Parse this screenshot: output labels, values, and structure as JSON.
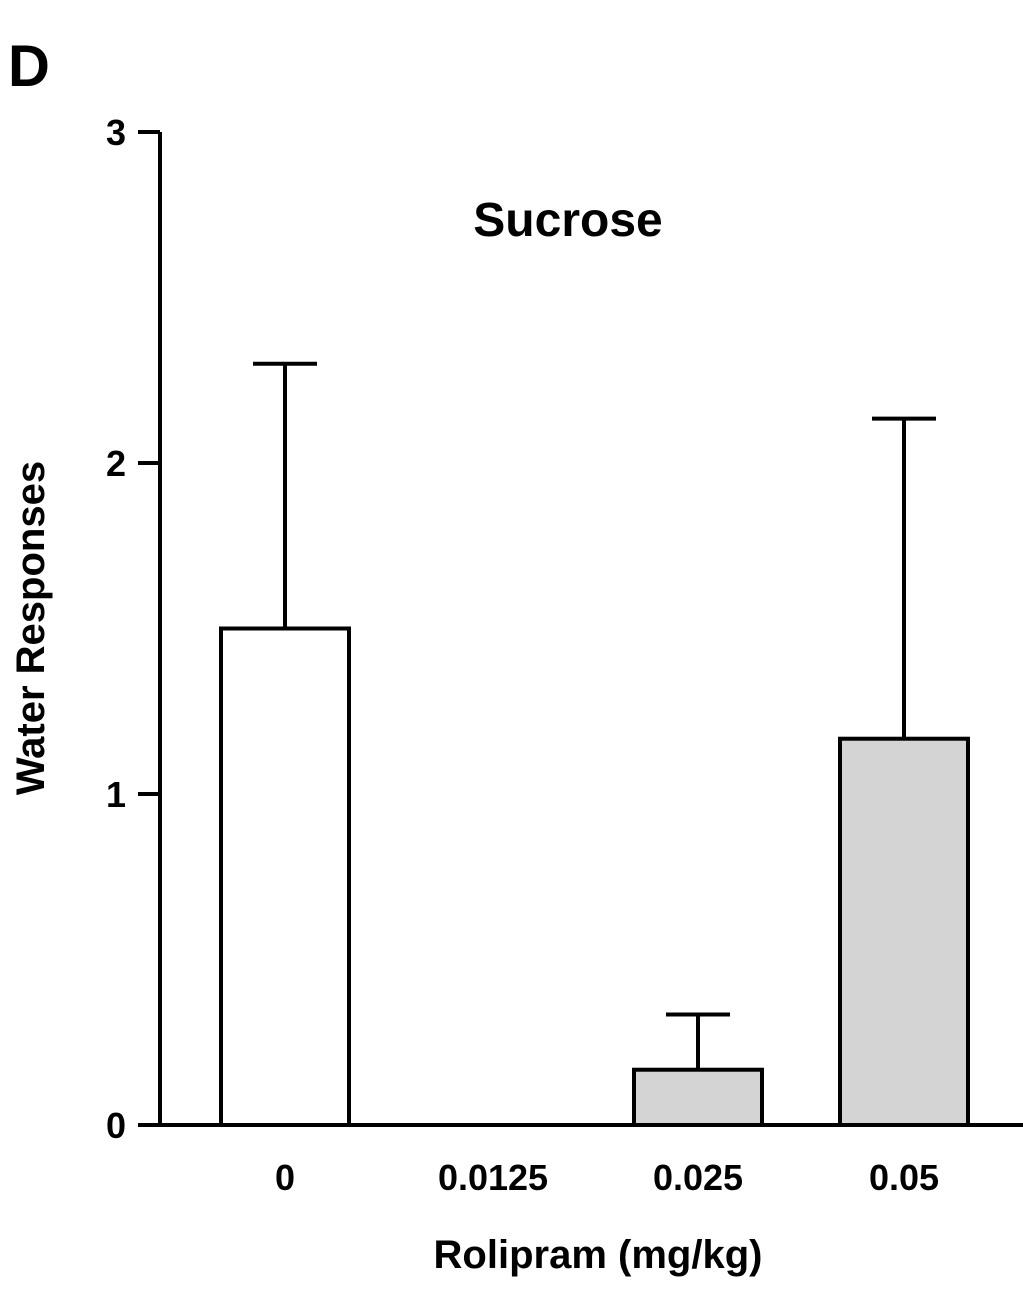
{
  "panel_label": "D",
  "chart_data": {
    "type": "bar",
    "title": "Sucrose",
    "xlabel": "Rolipram (mg/kg)",
    "ylabel": "Water Responses",
    "categories": [
      "0",
      "0.0125",
      "0.025",
      "0.05"
    ],
    "values": [
      1.5,
      0,
      0.167,
      1.167
    ],
    "errors": [
      0.8,
      0,
      0.167,
      0.967
    ],
    "ylim": [
      0,
      3
    ],
    "yticks": [
      0,
      1,
      2,
      3
    ],
    "grid": false,
    "legend": "none",
    "bar_colors": [
      "#ffffff",
      "#ffffff",
      "#d4d4d4",
      "#d4d4d4"
    ]
  }
}
